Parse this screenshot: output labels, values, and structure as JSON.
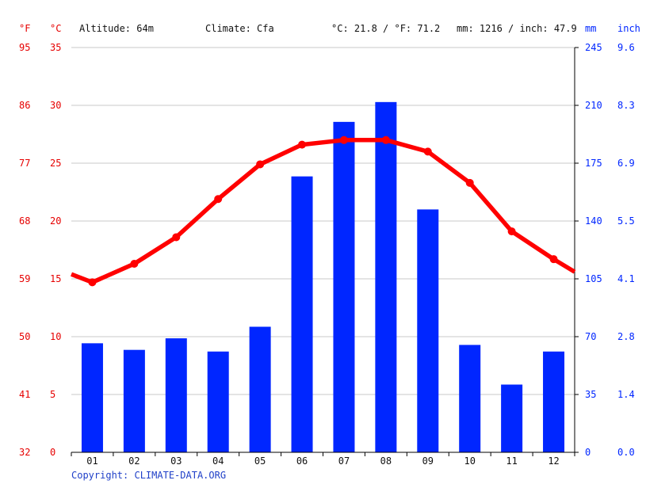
{
  "header": {
    "unit_f": "°F",
    "unit_c": "°C",
    "altitude": "Altitude: 64m",
    "climate": "Climate: Cfa",
    "temp_avg": "°C: 21.8 / °F: 71.2",
    "precip_total": "mm: 1216 / inch: 47.9",
    "unit_mm": "mm",
    "unit_inch": "inch"
  },
  "copyright": "Copyright: CLIMATE-DATA.ORG",
  "colors": {
    "temperature": "#ff0000",
    "precipitation": "#0026ff",
    "grid": "#c8c8c8",
    "axis": "#000000"
  },
  "chart_data": {
    "type": "bar+line",
    "categories": [
      "01",
      "02",
      "03",
      "04",
      "05",
      "06",
      "07",
      "08",
      "09",
      "10",
      "11",
      "12"
    ],
    "series": [
      {
        "type": "bar",
        "axis": "right",
        "values": [
          66,
          62,
          69,
          61,
          76,
          167,
          200,
          212,
          147,
          65,
          41,
          61
        ]
      },
      {
        "type": "line",
        "axis": "left",
        "values": [
          14.7,
          16.3,
          18.6,
          21.9,
          24.9,
          26.6,
          27.0,
          27.0,
          26.0,
          23.3,
          19.1,
          16.7
        ],
        "edge_start": 15.4,
        "edge_end": 15.6
      }
    ],
    "axes": {
      "left_c": {
        "ylim": [
          0,
          35
        ],
        "ticks": [
          "0",
          "5",
          "10",
          "15",
          "20",
          "25",
          "30",
          "35"
        ]
      },
      "left_f": {
        "ticks": [
          "32",
          "41",
          "50",
          "59",
          "68",
          "77",
          "86",
          "95"
        ]
      },
      "right_mm": {
        "ylim": [
          0,
          245
        ],
        "ticks": [
          "0",
          "35",
          "70",
          "105",
          "140",
          "175",
          "210",
          "245"
        ]
      },
      "right_inch": {
        "ticks": [
          "0.0",
          "1.4",
          "2.8",
          "4.1",
          "5.5",
          "6.9",
          "8.3",
          "9.6"
        ]
      }
    },
    "grid": true,
    "legend": "none"
  }
}
